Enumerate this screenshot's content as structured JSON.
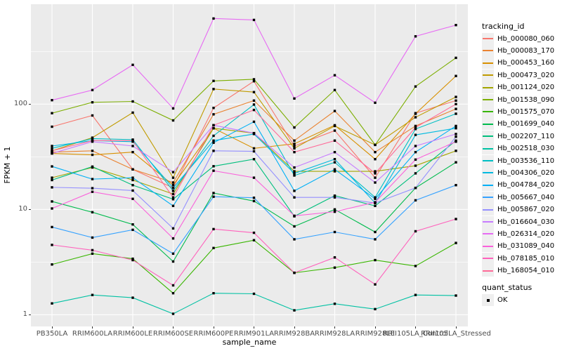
{
  "figure": {
    "background": "#FFFFFF",
    "panel_background": "#EBEBEB",
    "grid_color": "#FFFFFF",
    "axis_text_color": "#4D4D4D",
    "marker_color": "#000000"
  },
  "chart_data": {
    "type": "line",
    "title": "",
    "xlabel": "sample_name",
    "ylabel": "FPKM + 1",
    "x_categories": [
      "PB350LA",
      "RRIM600LA",
      "RRIM600LE",
      "RRIM600SE",
      "RRIM600PE",
      "RRIM901LA",
      "RRIM928BA",
      "RRIM928LA",
      "RRIM928LE",
      "RRII105LA_Control",
      "RRII105LA_Stressed"
    ],
    "y_scale": "log10",
    "y_ticks": [
      "1",
      "10",
      "100"
    ],
    "y_tick_values": [
      1,
      10,
      100
    ],
    "y_minor_values": [
      3.162,
      31.62,
      316.2
    ],
    "ylim": [
      0.77,
      890
    ],
    "grid": true,
    "legend_position": "right",
    "legend_title": "tracking_id",
    "marker": "black-square",
    "series": [
      {
        "name": "Hb_000080_060",
        "color": "#F8766D",
        "values": [
          61,
          78,
          24,
          16,
          92,
          165,
          40,
          56,
          20,
          82,
          108
        ]
      },
      {
        "name": "Hb_000083_170",
        "color": "#EA8331",
        "values": [
          35,
          36,
          24,
          18,
          80,
          108,
          45,
          86,
          35,
          62,
          90
        ]
      },
      {
        "name": "Hb_000453_160",
        "color": "#D89000",
        "values": [
          34,
          33,
          35,
          17,
          59,
          38,
          42,
          63,
          30,
          81,
          185
        ]
      },
      {
        "name": "Hb_000473_020",
        "color": "#C09B00",
        "values": [
          36,
          48,
          83,
          20,
          139,
          130,
          38,
          62,
          41,
          75,
          117
        ]
      },
      {
        "name": "Hb_001124_020",
        "color": "#A3A500",
        "values": [
          20,
          25,
          19,
          14,
          59,
          53,
          23,
          23,
          23,
          26,
          36
        ]
      },
      {
        "name": "Hb_001538_090",
        "color": "#7CAE00",
        "values": [
          82,
          104,
          106,
          70,
          166,
          172,
          60,
          136,
          41,
          147,
          275
        ]
      },
      {
        "name": "Hb_001575_070",
        "color": "#39B600",
        "values": [
          3.0,
          3.8,
          3.4,
          1.6,
          4.3,
          5.1,
          2.5,
          2.8,
          3.3,
          2.9,
          4.8
        ]
      },
      {
        "name": "Hb_001699_040",
        "color": "#00BB4E",
        "values": [
          11.9,
          9.4,
          7.2,
          3.2,
          14.3,
          12,
          6.9,
          10,
          6.1,
          16,
          28
        ]
      },
      {
        "name": "Hb_002207_110",
        "color": "#00BF7D",
        "values": [
          19,
          25.5,
          17,
          12.5,
          25.7,
          30,
          8.6,
          13.5,
          10.8,
          22,
          45
        ]
      },
      {
        "name": "Hb_002518_030",
        "color": "#00C1A3",
        "values": [
          1.28,
          1.54,
          1.45,
          1.02,
          1.6,
          1.58,
          1.1,
          1.27,
          1.13,
          1.54,
          1.52
        ]
      },
      {
        "name": "Hb_003536_110",
        "color": "#00BFC4",
        "values": [
          38,
          47,
          46,
          15,
          50,
          99,
          21,
          28,
          13,
          58,
          81
        ]
      },
      {
        "name": "Hb_004306_020",
        "color": "#00BAE0",
        "values": [
          40,
          45,
          44,
          16,
          45,
          52,
          22,
          30,
          11.5,
          51,
          59
        ]
      },
      {
        "name": "Hb_004784_020",
        "color": "#00B0F6",
        "values": [
          25.6,
          19.4,
          20,
          10.8,
          43,
          68,
          15,
          24,
          12.6,
          35,
          62
        ]
      },
      {
        "name": "Hb_005667_040",
        "color": "#35A2FF",
        "values": [
          6.8,
          5.4,
          6.4,
          3.8,
          13.2,
          12.9,
          5.2,
          6.1,
          5.2,
          12.2,
          17
        ]
      },
      {
        "name": "Hb_005867_020",
        "color": "#9590FF",
        "values": [
          16.2,
          15.9,
          15.1,
          6.6,
          36,
          35.6,
          13,
          13,
          11.5,
          16,
          49
        ]
      },
      {
        "name": "Hb_016604_030",
        "color": "#C77CFF",
        "values": [
          34,
          44,
          40,
          22.6,
          63,
          53,
          25,
          35,
          18,
          40,
          52
        ]
      },
      {
        "name": "Hb_026314_020",
        "color": "#E76BF3",
        "values": [
          109,
          136,
          236,
          91,
          650,
          630,
          113,
          188,
          103,
          440,
          563
        ]
      },
      {
        "name": "Hb_031089_040",
        "color": "#FA62DB",
        "values": [
          10.2,
          14.7,
          12.6,
          5.3,
          23.3,
          20,
          8.7,
          9.5,
          11.7,
          29.7,
          44
        ]
      },
      {
        "name": "Hb_078185_010",
        "color": "#FF62BC",
        "values": [
          4.6,
          4.1,
          3.3,
          1.9,
          6.5,
          6.0,
          2.5,
          3.5,
          1.94,
          6.2,
          8.1
        ]
      },
      {
        "name": "Hb_168054_010",
        "color": "#FF6A98",
        "values": [
          36,
          45,
          45,
          13,
          63,
          88,
          35,
          45,
          22,
          60,
          100
        ]
      }
    ],
    "quant_status": {
      "title": "quant_status",
      "items": [
        {
          "label": "OK",
          "marker": "black-square"
        }
      ]
    }
  }
}
